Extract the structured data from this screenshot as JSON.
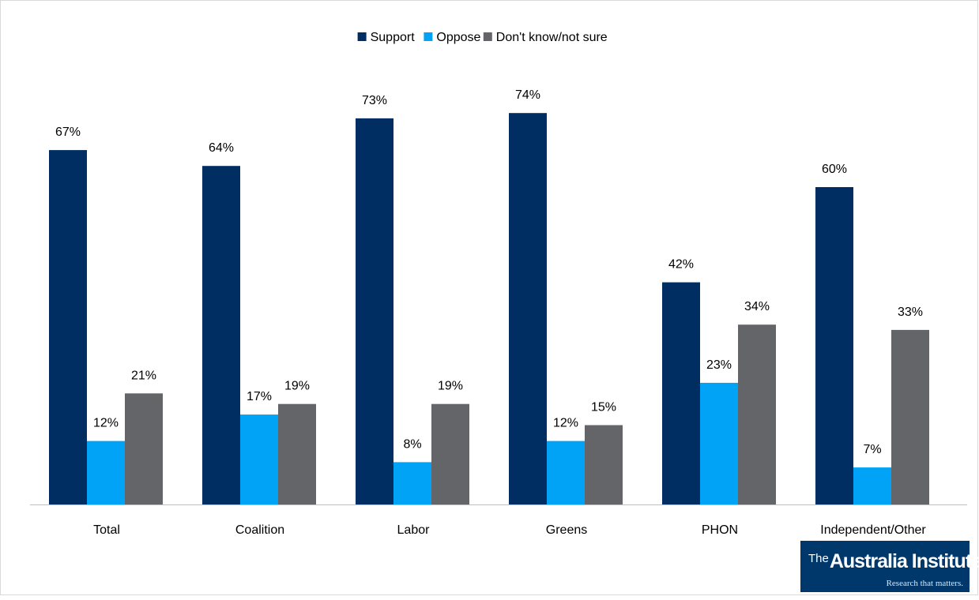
{
  "chart_data": {
    "type": "bar",
    "title": "",
    "xlabel": "",
    "ylabel": "",
    "ylim": [
      0,
      80
    ],
    "grid": false,
    "legend_position": "top-center",
    "categories": [
      "Total",
      "Coalition",
      "Labor",
      "Greens",
      "PHON",
      "Independent/Other"
    ],
    "series": [
      {
        "name": "Support",
        "color": "#002d62",
        "values": [
          67,
          64,
          73,
          74,
          42,
          60
        ],
        "labels": [
          "67%",
          "64%",
          "73%",
          "74%",
          "42%",
          "60%"
        ]
      },
      {
        "name": "Oppose",
        "color": "#00a3f5",
        "values": [
          12,
          17,
          8,
          12,
          23,
          7
        ],
        "labels": [
          "12%",
          "17%",
          "8%",
          "12%",
          "23%",
          "7%"
        ]
      },
      {
        "name": "Don't know/not sure",
        "color": "#636569",
        "values": [
          21,
          19,
          19,
          15,
          34,
          33
        ],
        "labels": [
          "21%",
          "19%",
          "19%",
          "15%",
          "34%",
          "33%"
        ]
      }
    ]
  },
  "logo": {
    "prefix": "The",
    "name": "Australia Institute",
    "tagline": "Research that matters."
  }
}
